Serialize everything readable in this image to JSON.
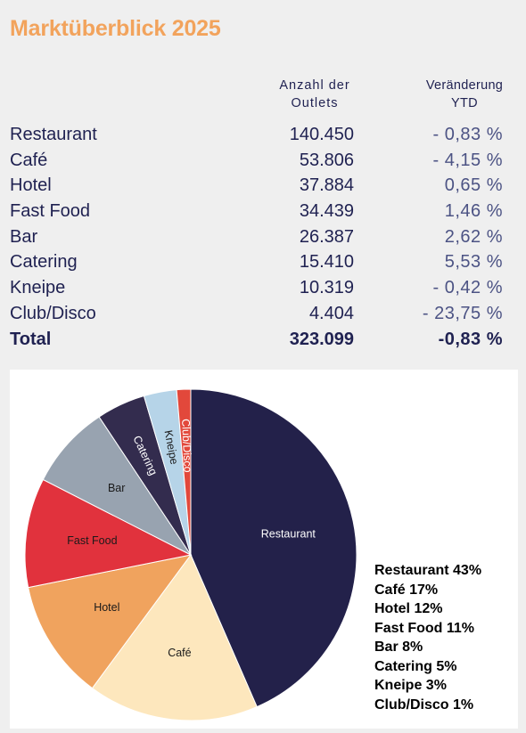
{
  "title": "Marktüberblick 2025",
  "columns": {
    "outlets_line1": "Anzahl der",
    "outlets_line2": "Outlets",
    "change_line1": "Veränderung",
    "change_line2": "YTD"
  },
  "rows": [
    {
      "name": "Restaurant",
      "value": "140.450",
      "change": "- 0,83 %"
    },
    {
      "name": "Café",
      "value": "53.806",
      "change": "- 4,15 %"
    },
    {
      "name": "Hotel",
      "value": "37.884",
      "change": "0,65 %"
    },
    {
      "name": "Fast Food",
      "value": "34.439",
      "change": "1,46 %"
    },
    {
      "name": "Bar",
      "value": "26.387",
      "change": "2,62 %"
    },
    {
      "name": "Catering",
      "value": "15.410",
      "change": "5,53 %"
    },
    {
      "name": "Kneipe",
      "value": "10.319",
      "change": "- 0,42 %"
    },
    {
      "name": "Club/Disco",
      "value": "4.404",
      "change": "- 23,75 %"
    }
  ],
  "total": {
    "name": "Total",
    "value": "323.099",
    "change": "-0,83 %"
  },
  "chart_data": {
    "type": "pie",
    "categories": [
      "Restaurant",
      "Café",
      "Hotel",
      "Fast Food",
      "Bar",
      "Catering",
      "Kneipe",
      "Club/Disco"
    ],
    "values": [
      140450,
      53806,
      37884,
      34439,
      26387,
      15410,
      10319,
      4404
    ],
    "colors": [
      "#23214a",
      "#fde7bd",
      "#f0a35e",
      "#e1323d",
      "#98a3b0",
      "#332c4e",
      "#b6d4e8",
      "#e2483b"
    ],
    "legend": [
      "Restaurant 43%",
      "Café 17%",
      "Hotel 12%",
      "Fast Food 11%",
      "Bar 8%",
      "Catering 5%",
      "Kneipe 3%",
      "Club/Disco 1%"
    ],
    "legend_position": "bottom-right"
  }
}
